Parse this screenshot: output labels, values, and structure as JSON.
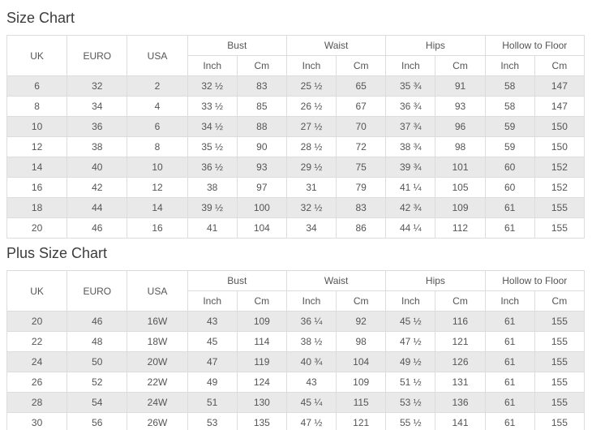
{
  "tables": [
    {
      "title": "Size Chart",
      "columns": [
        {
          "label": "UK",
          "span": 1
        },
        {
          "label": "EURO",
          "span": 1
        },
        {
          "label": "USA",
          "span": 1
        },
        {
          "label": "Bust",
          "span": 2
        },
        {
          "label": "Waist",
          "span": 2
        },
        {
          "label": "Hips",
          "span": 2
        },
        {
          "label": "Hollow to Floor",
          "span": 2
        }
      ],
      "sub_labels": [
        "Inch",
        "Cm"
      ],
      "rows": [
        [
          "6",
          "32",
          "2",
          "32 ½",
          "83",
          "25 ½",
          "65",
          "35 ¾",
          "91",
          "58",
          "147"
        ],
        [
          "8",
          "34",
          "4",
          "33 ½",
          "85",
          "26 ½",
          "67",
          "36 ¾",
          "93",
          "58",
          "147"
        ],
        [
          "10",
          "36",
          "6",
          "34 ½",
          "88",
          "27 ½",
          "70",
          "37 ¾",
          "96",
          "59",
          "150"
        ],
        [
          "12",
          "38",
          "8",
          "35 ½",
          "90",
          "28 ½",
          "72",
          "38 ¾",
          "98",
          "59",
          "150"
        ],
        [
          "14",
          "40",
          "10",
          "36 ½",
          "93",
          "29 ½",
          "75",
          "39 ¾",
          "101",
          "60",
          "152"
        ],
        [
          "16",
          "42",
          "12",
          "38",
          "97",
          "31",
          "79",
          "41 ¼",
          "105",
          "60",
          "152"
        ],
        [
          "18",
          "44",
          "14",
          "39 ½",
          "100",
          "32 ½",
          "83",
          "42 ¾",
          "109",
          "61",
          "155"
        ],
        [
          "20",
          "46",
          "16",
          "41",
          "104",
          "34",
          "86",
          "44 ¼",
          "112",
          "61",
          "155"
        ]
      ]
    },
    {
      "title": "Plus Size Chart",
      "columns": [
        {
          "label": "UK",
          "span": 1
        },
        {
          "label": "EURO",
          "span": 1
        },
        {
          "label": "USA",
          "span": 1
        },
        {
          "label": "Bust",
          "span": 2
        },
        {
          "label": "Waist",
          "span": 2
        },
        {
          "label": "Hips",
          "span": 2
        },
        {
          "label": "Hollow to Floor",
          "span": 2
        }
      ],
      "sub_labels": [
        "Inch",
        "Cm"
      ],
      "rows": [
        [
          "20",
          "46",
          "16W",
          "43",
          "109",
          "36 ¼",
          "92",
          "45 ½",
          "116",
          "61",
          "155"
        ],
        [
          "22",
          "48",
          "18W",
          "45",
          "114",
          "38 ½",
          "98",
          "47 ½",
          "121",
          "61",
          "155"
        ],
        [
          "24",
          "50",
          "20W",
          "47",
          "119",
          "40 ¾",
          "104",
          "49 ½",
          "126",
          "61",
          "155"
        ],
        [
          "26",
          "52",
          "22W",
          "49",
          "124",
          "43",
          "109",
          "51 ½",
          "131",
          "61",
          "155"
        ],
        [
          "28",
          "54",
          "24W",
          "51",
          "130",
          "45 ¼",
          "115",
          "53 ½",
          "136",
          "61",
          "155"
        ],
        [
          "30",
          "56",
          "26W",
          "53",
          "135",
          "47 ½",
          "121",
          "55 ½",
          "141",
          "61",
          "155"
        ]
      ]
    }
  ],
  "colors": {
    "stripe_row_bg": "#e9e9e9",
    "border": "#dcdcdc",
    "cell_text": "#555555",
    "title_text": "#3c3c3c"
  }
}
